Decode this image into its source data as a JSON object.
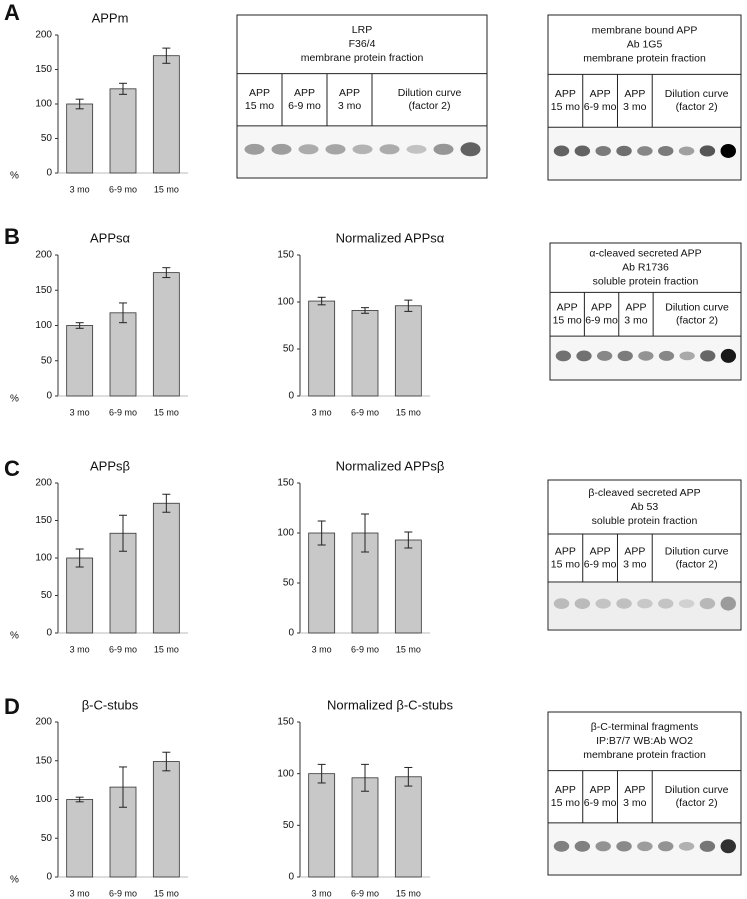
{
  "panel_letters": [
    "A",
    "B",
    "C",
    "D"
  ],
  "chart_data": [
    {
      "type": "bar",
      "title": "APPm",
      "ylabel": "%",
      "categories": [
        "3 mo",
        "6-9 mo",
        "15 mo"
      ],
      "values": [
        100,
        122,
        170
      ],
      "errors": [
        7,
        8,
        11
      ],
      "color": "#c8c8c8",
      "ylim": [
        0,
        200
      ],
      "yticks": [
        0,
        50,
        100,
        150,
        200
      ]
    },
    {
      "type": "bar",
      "title": "APPsα",
      "ylabel": "%",
      "categories": [
        "3 mo",
        "6-9 mo",
        "15 mo"
      ],
      "values": [
        100,
        118,
        175
      ],
      "errors": [
        4,
        14,
        7
      ],
      "color": "#c8c8c8",
      "ylim": [
        0,
        200
      ],
      "yticks": [
        0,
        50,
        100,
        150,
        200
      ]
    },
    {
      "type": "bar",
      "title": "Normalized APPsα",
      "categories": [
        "3 mo",
        "6-9 mo",
        "15 mo"
      ],
      "values": [
        101,
        91,
        96
      ],
      "errors": [
        4,
        3,
        6
      ],
      "color": "#c8c8c8",
      "ylim": [
        0,
        150
      ],
      "yticks": [
        0,
        50,
        100,
        150
      ]
    },
    {
      "type": "bar",
      "title": "APPsβ",
      "ylabel": "%",
      "categories": [
        "3 mo",
        "6-9 mo",
        "15 mo"
      ],
      "values": [
        100,
        133,
        173
      ],
      "errors": [
        12,
        24,
        12
      ],
      "color": "#c8c8c8",
      "ylim": [
        0,
        200
      ],
      "yticks": [
        0,
        50,
        100,
        150,
        200
      ]
    },
    {
      "type": "bar",
      "title": "Normalized APPsβ",
      "categories": [
        "3 mo",
        "6-9 mo",
        "15 mo"
      ],
      "values": [
        100,
        100,
        93
      ],
      "errors": [
        12,
        19,
        8
      ],
      "color": "#c8c8c8",
      "ylim": [
        0,
        150
      ],
      "yticks": [
        0,
        50,
        100,
        150
      ]
    },
    {
      "type": "bar",
      "title": "β-C-stubs",
      "ylabel": "%",
      "categories": [
        "3 mo",
        "6-9 mo",
        "15 mo"
      ],
      "values": [
        100,
        116,
        149
      ],
      "errors": [
        3,
        26,
        12
      ],
      "color": "#c8c8c8",
      "ylim": [
        0,
        200
      ],
      "yticks": [
        0,
        50,
        100,
        150,
        200
      ]
    },
    {
      "type": "bar",
      "title": "Normalized β-C-stubs",
      "categories": [
        "3 mo",
        "6-9 mo",
        "15 mo"
      ],
      "values": [
        100,
        96,
        97
      ],
      "errors": [
        9,
        13,
        9
      ],
      "color": "#c8c8c8",
      "ylim": [
        0,
        150
      ],
      "yticks": [
        0,
        50,
        100,
        150
      ]
    }
  ],
  "blots": [
    {
      "header": [
        "LRP",
        "F36/4",
        "membrane protein fraction"
      ],
      "lanes": [
        [
          "APP",
          "15 mo"
        ],
        [
          "APP",
          "6-9 mo"
        ],
        [
          "APP",
          "3 mo"
        ],
        [
          "Dilution curve",
          "(factor 2)"
        ]
      ]
    },
    {
      "header": [
        "membrane bound APP",
        "Ab 1G5",
        "membrane protein fraction"
      ],
      "lanes": [
        [
          "APP",
          "15 mo"
        ],
        [
          "APP",
          "6-9 mo"
        ],
        [
          "APP",
          "3 mo"
        ],
        [
          "Dilution curve",
          "(factor 2)"
        ]
      ]
    },
    {
      "header": [
        "α-cleaved secreted APP",
        "Ab R1736",
        "soluble protein fraction"
      ],
      "lanes": [
        [
          "APP",
          "15 mo"
        ],
        [
          "APP",
          "6-9 mo"
        ],
        [
          "APP",
          "3 mo"
        ],
        [
          "Dilution curve",
          "(factor 2)"
        ]
      ]
    },
    {
      "header": [
        "β-cleaved secreted APP",
        "Ab 53",
        "soluble protein fraction"
      ],
      "lanes": [
        [
          "APP",
          "15 mo"
        ],
        [
          "APP",
          "6-9 mo"
        ],
        [
          "APP",
          "3 mo"
        ],
        [
          "Dilution curve",
          "(factor 2)"
        ]
      ]
    },
    {
      "header": [
        "β-C-terminal fragments",
        "IP:B7/7     WB:Ab WO2",
        "membrane protein fraction"
      ],
      "lanes": [
        [
          "APP",
          "15 mo"
        ],
        [
          "APP",
          "6-9 mo"
        ],
        [
          "APP",
          "3 mo"
        ],
        [
          "Dilution curve",
          "(factor 2)"
        ]
      ]
    }
  ]
}
